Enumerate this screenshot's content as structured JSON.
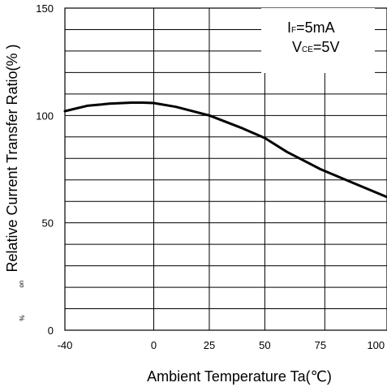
{
  "chart_data": {
    "type": "line",
    "title": "",
    "xlabel": "Ambient Temperature  Ta(℃)",
    "ylabel": "Relative Current Transfer Ratio(% )",
    "xlim": [
      -40,
      105
    ],
    "ylim": [
      0,
      150
    ],
    "x_ticks": [
      "-40",
      "0",
      "25",
      "50",
      "75",
      "100"
    ],
    "y_ticks": [
      "0",
      "50",
      "100",
      "150"
    ],
    "grid": true,
    "annotation": {
      "line1_main": "I",
      "line1_sub": "F",
      "line1_rest": "=5mA",
      "line2_main": "V",
      "line2_sub": "CE",
      "line2_rest": "=5V"
    },
    "stray_labels": [
      "on",
      "%"
    ],
    "series": [
      {
        "x": [
          -40,
          -30,
          -20,
          -10,
          -5,
          0,
          10,
          25,
          40,
          50,
          60,
          75,
          90,
          105
        ],
        "values": [
          102,
          104.5,
          105.5,
          106,
          106,
          105.8,
          104,
          100,
          94,
          89.5,
          83,
          75,
          68.5,
          62
        ]
      }
    ]
  }
}
